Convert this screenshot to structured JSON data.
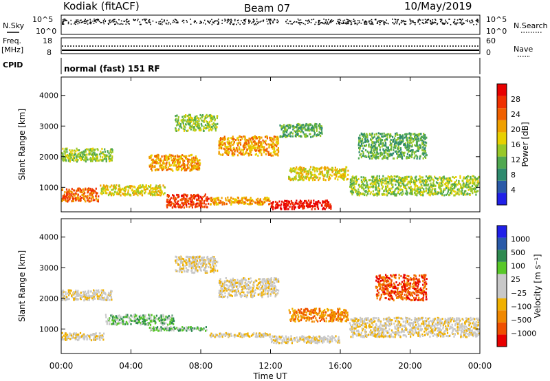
{
  "header": {
    "station": "Kodiak (fitACF)",
    "beam": "Beam 07",
    "date": "10/May/2019"
  },
  "top_panels": {
    "nsky_label": "N.Sky",
    "nsearch_label": "N.Search",
    "nsky_ticks": [
      "10^5",
      "10^0"
    ],
    "nsearch_ticks": [
      "10^5",
      "10^0"
    ],
    "freq_label": "Freq.",
    "freq_unit": "[MHz]",
    "freq_ticks": [
      "18",
      "8"
    ],
    "nave_label": "Nave",
    "nave_ticks": [
      "60",
      "0"
    ],
    "cpid_label": "CPID",
    "cpid_text": "normal (fast) 151 RF"
  },
  "chart_data": [
    {
      "type": "heatmap",
      "name": "power",
      "ylabel": "Slant Range [km]",
      "yticks": [
        1000,
        2000,
        3000,
        4000
      ],
      "ylim": [
        200,
        4600
      ],
      "xlim": [
        0,
        24
      ],
      "colorbar": {
        "label": "Power [dB]",
        "ticks": [
          "28",
          "24",
          "20",
          "16",
          "12",
          "8",
          "4"
        ],
        "colors": [
          "#2020e8",
          "#2a5aa8",
          "#2e8a6e",
          "#50a850",
          "#98c828",
          "#e8d000",
          "#f0a000",
          "#f06000",
          "#f03000",
          "#e80000"
        ]
      },
      "echo_regions": [
        {
          "t": [
            0.0,
            2.2
          ],
          "r": [
            500,
            1000
          ],
          "level": 7
        },
        {
          "t": [
            2.2,
            6.0
          ],
          "r": [
            700,
            1100
          ],
          "level": 5
        },
        {
          "t": [
            6.0,
            8.5
          ],
          "r": [
            300,
            800
          ],
          "level": 8
        },
        {
          "t": [
            8.5,
            12.0
          ],
          "r": [
            400,
            700
          ],
          "level": 6
        },
        {
          "t": [
            12.0,
            15.5
          ],
          "r": [
            250,
            600
          ],
          "level": 9
        },
        {
          "t": [
            0.0,
            3.0
          ],
          "r": [
            1800,
            2300
          ],
          "level": 4
        },
        {
          "t": [
            5.0,
            8.0
          ],
          "r": [
            1500,
            2100
          ],
          "level": 6
        },
        {
          "t": [
            6.5,
            9.0
          ],
          "r": [
            2800,
            3400
          ],
          "level": 4
        },
        {
          "t": [
            9.0,
            12.5
          ],
          "r": [
            2000,
            2700
          ],
          "level": 6
        },
        {
          "t": [
            12.5,
            15.0
          ],
          "r": [
            2600,
            3100
          ],
          "level": 3
        },
        {
          "t": [
            13.0,
            16.5
          ],
          "r": [
            1200,
            1700
          ],
          "level": 5
        },
        {
          "t": [
            16.5,
            24.0
          ],
          "r": [
            700,
            1400
          ],
          "level": 4
        },
        {
          "t": [
            17.0,
            21.0
          ],
          "r": [
            1900,
            2800
          ],
          "level": 3
        }
      ]
    },
    {
      "type": "heatmap",
      "name": "velocity",
      "xlabel": "Time UT",
      "ylabel": "Slant Range [km]",
      "xticks": [
        "00:00",
        "04:00",
        "08:00",
        "12:00",
        "16:00",
        "20:00",
        "00:00"
      ],
      "yticks": [
        1000,
        2000,
        3000,
        4000
      ],
      "ylim": [
        200,
        4600
      ],
      "xlim": [
        0,
        24
      ],
      "colorbar": {
        "label": "Velocity [m s⁻¹]",
        "ticks": [
          "1000",
          "500",
          "100",
          "25",
          "−25",
          "−100",
          "−500",
          "−1000"
        ],
        "colors": [
          "#e80000",
          "#f05000",
          "#f08800",
          "#f0b000",
          "#c8c8c8",
          "#c8c8c8",
          "#58c828",
          "#2e8a50",
          "#2a5aa8",
          "#2020e8"
        ]
      },
      "echo_regions": [
        {
          "t": [
            0.0,
            2.5
          ],
          "r": [
            600,
            900
          ],
          "level": 4
        },
        {
          "t": [
            2.5,
            6.5
          ],
          "r": [
            1100,
            1500
          ],
          "level": 6
        },
        {
          "t": [
            5.0,
            8.5
          ],
          "r": [
            900,
            1100
          ],
          "level": 6
        },
        {
          "t": [
            8.5,
            12.0
          ],
          "r": [
            700,
            900
          ],
          "level": 4
        },
        {
          "t": [
            12.0,
            16.0
          ],
          "r": [
            500,
            800
          ],
          "level": 4
        },
        {
          "t": [
            0.0,
            3.0
          ],
          "r": [
            1900,
            2300
          ],
          "level": 4
        },
        {
          "t": [
            6.5,
            9.0
          ],
          "r": [
            2800,
            3400
          ],
          "level": 4
        },
        {
          "t": [
            9.0,
            12.5
          ],
          "r": [
            2000,
            2700
          ],
          "level": 4
        },
        {
          "t": [
            13.0,
            16.5
          ],
          "r": [
            1200,
            1700
          ],
          "level": 2
        },
        {
          "t": [
            16.5,
            24.0
          ],
          "r": [
            700,
            1400
          ],
          "level": 4
        },
        {
          "t": [
            18.0,
            21.0
          ],
          "r": [
            1900,
            2800
          ],
          "level": 1
        }
      ]
    }
  ]
}
